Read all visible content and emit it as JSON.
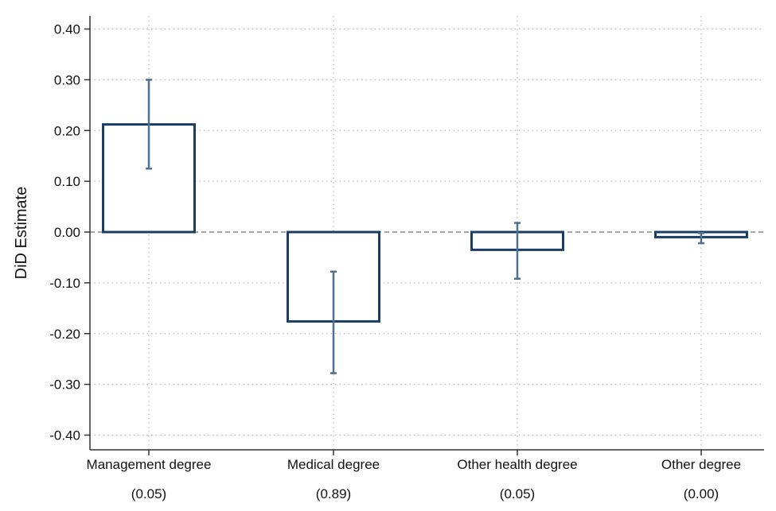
{
  "chart_data": {
    "type": "bar",
    "ylabel": "DiD Estimate",
    "xlabel": "",
    "ylim": [
      -0.4,
      0.4
    ],
    "yticks": [
      0.4,
      0.3,
      0.2,
      0.1,
      0.0,
      -0.1,
      -0.2,
      -0.3,
      -0.4
    ],
    "ytick_labels": [
      "0.40",
      "0.30",
      "0.20",
      "0.10",
      "0.00",
      "-0.10",
      "-0.20",
      "-0.30",
      "-0.40"
    ],
    "categories": [
      "Management degree",
      "Medical degree",
      "Other health degree",
      "Other degree"
    ],
    "category_sublabels": [
      "(0.05)",
      "(0.89)",
      "(0.05)",
      "(0.00)"
    ],
    "values": [
      0.212,
      -0.176,
      -0.035,
      -0.01
    ],
    "ci_lower": [
      0.125,
      -0.278,
      -0.092,
      -0.022
    ],
    "ci_upper": [
      0.3,
      -0.078,
      0.018,
      -0.002
    ],
    "grid": true,
    "zero_line": "dashed",
    "colors": {
      "bar_edge": "#1a3d63",
      "bar_fill": "#ffffff",
      "error_bar": "#4f7090",
      "axis": "#333333",
      "grid": "#b8b8b8",
      "zero_line": "#888888"
    }
  }
}
